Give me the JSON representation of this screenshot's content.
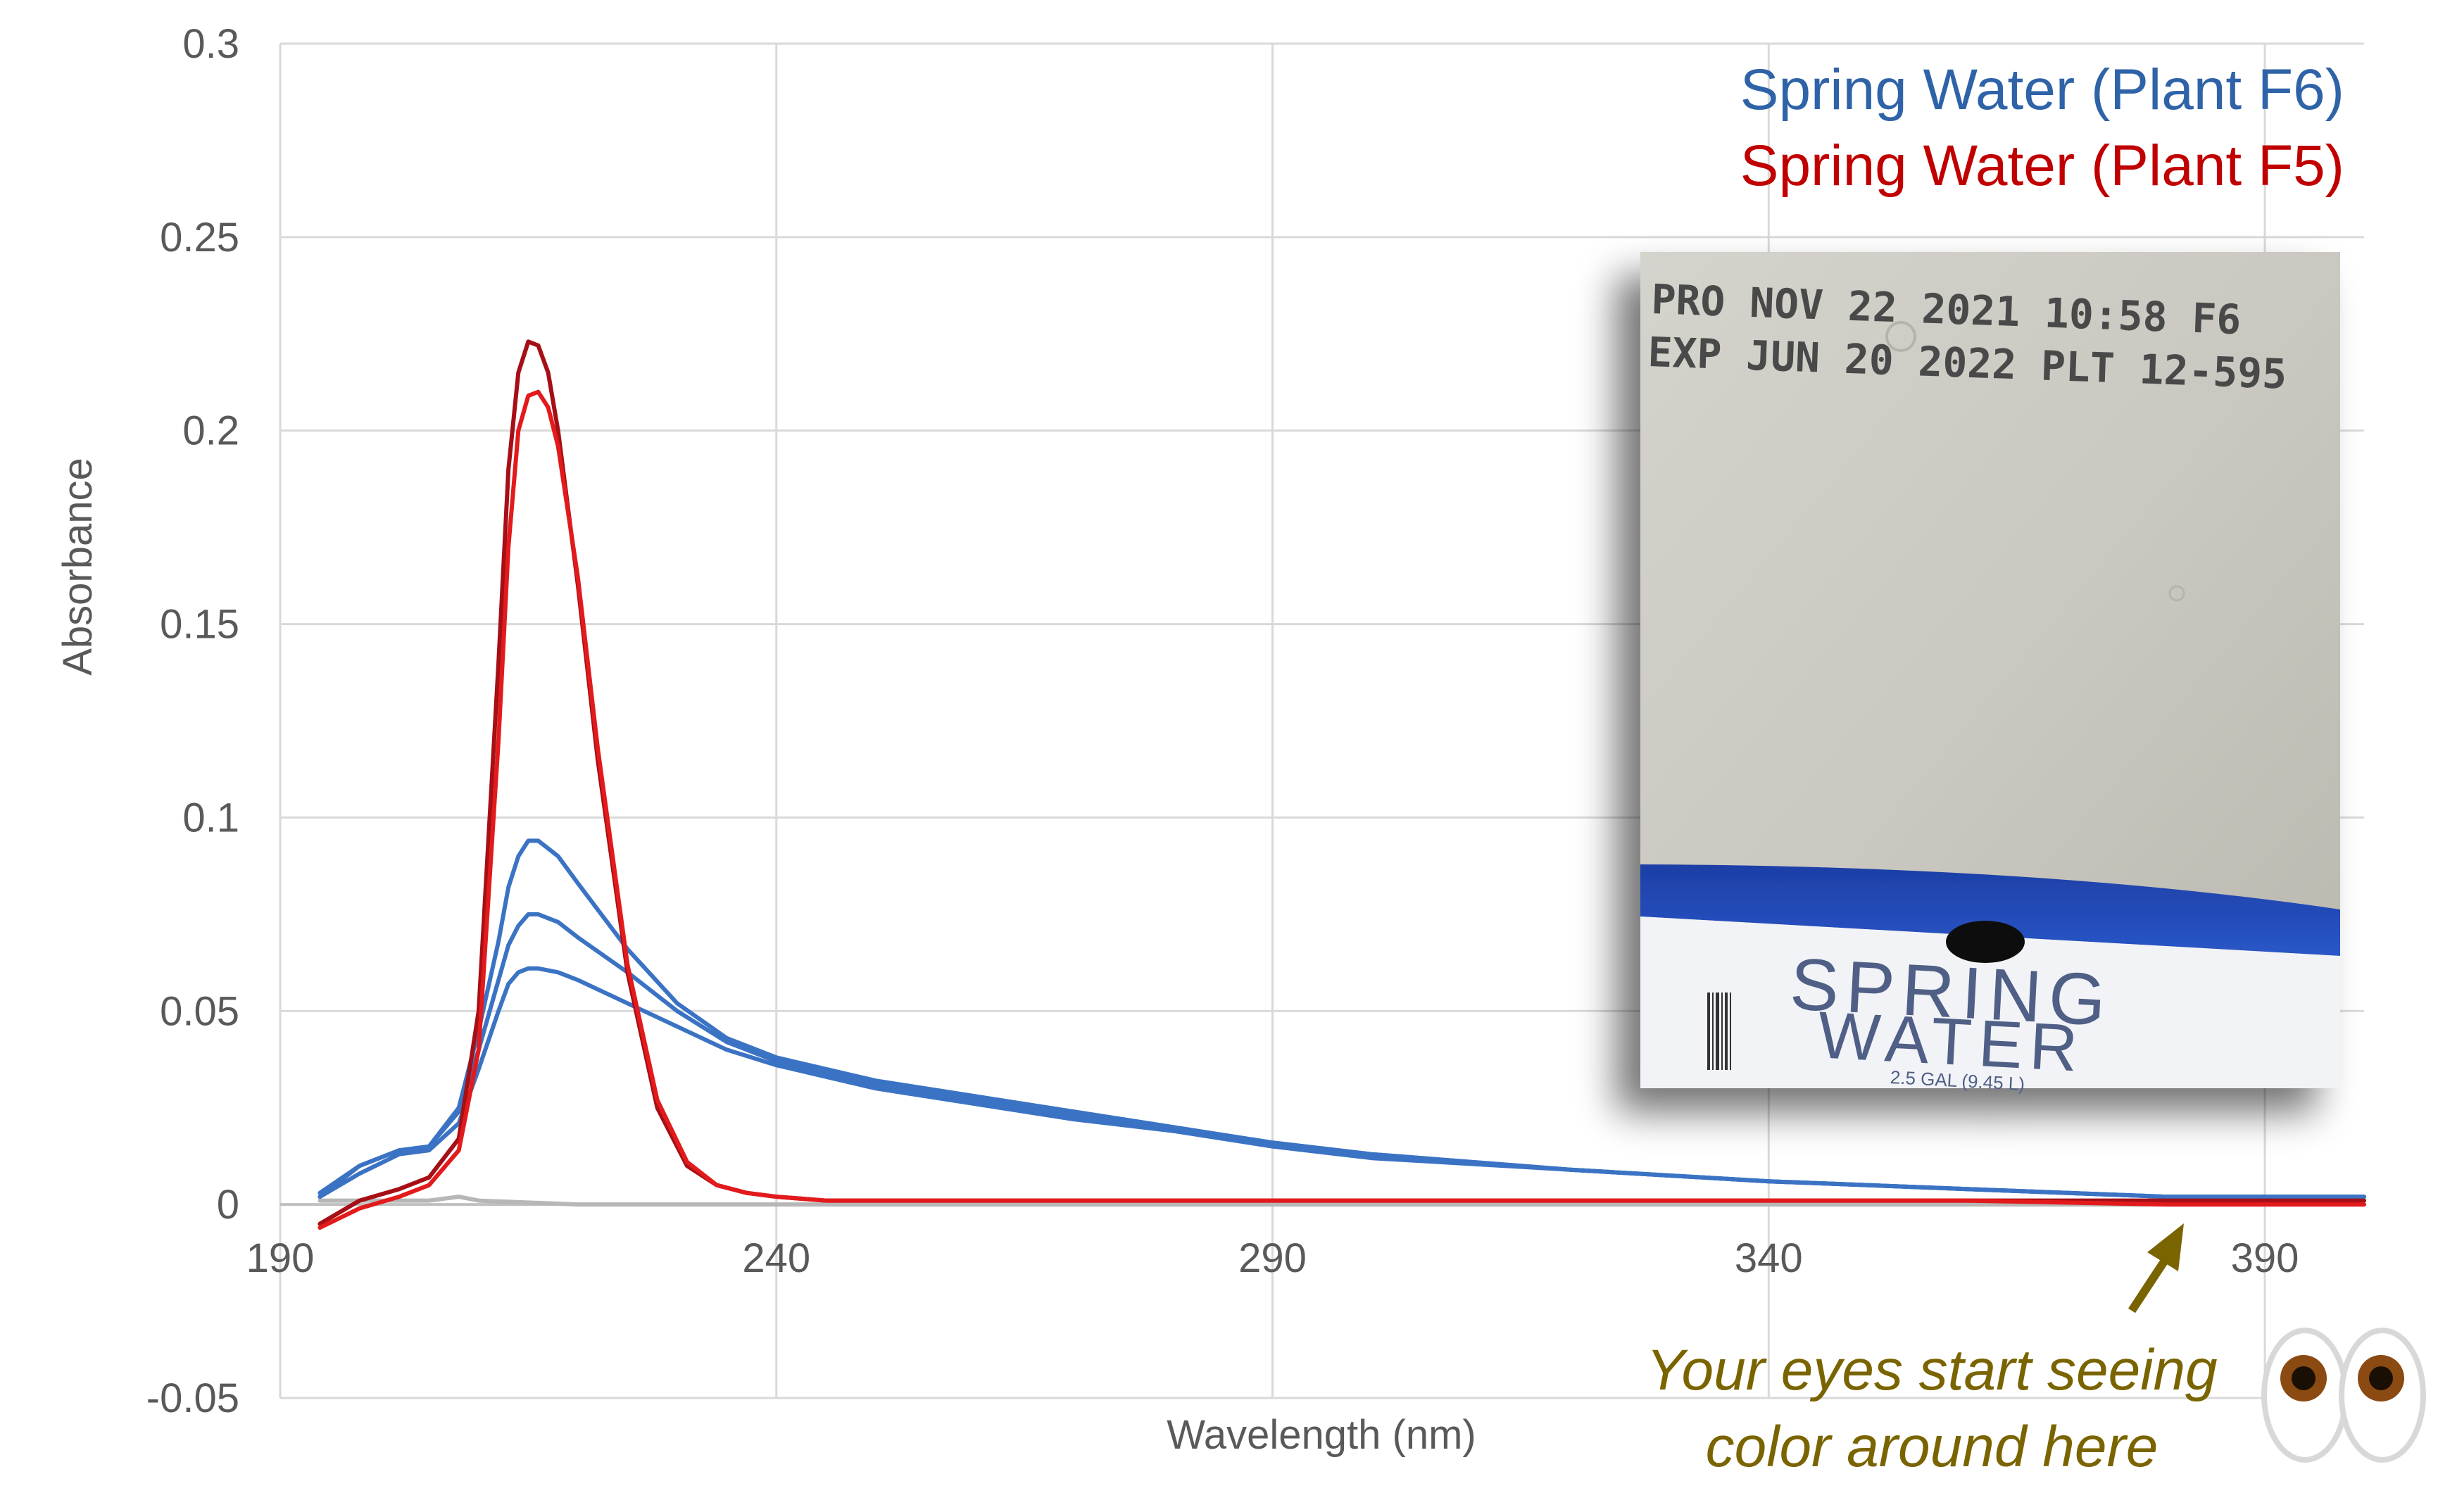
{
  "chart_data": {
    "type": "line",
    "title": "",
    "xlabel": "Wavelength (nm)",
    "ylabel": "Absorbance",
    "xlim": [
      190,
      400
    ],
    "ylim": [
      -0.05,
      0.3
    ],
    "x_ticks": [
      190,
      240,
      290,
      340,
      390
    ],
    "x_tick_labels": [
      "190",
      "240",
      "290",
      "340",
      "390"
    ],
    "y_ticks": [
      -0.05,
      0,
      0.05,
      0.1,
      0.15,
      0.2,
      0.25,
      0.3
    ],
    "y_tick_labels": [
      "-0.05",
      "0",
      "0.05",
      "0.1",
      "0.15",
      "0.2",
      "0.25",
      "0.3"
    ],
    "grid": true,
    "legend_position": "top-right",
    "legend": [
      {
        "label": "Spring Water (Plant F6)",
        "color": "#2f63a8"
      },
      {
        "label": "Spring Water (Plant F5)",
        "color": "#c00000"
      }
    ],
    "series": [
      {
        "color": "#3b73c4",
        "x": [
          194,
          198,
          202,
          205,
          208,
          210,
          212,
          213,
          214,
          215,
          216,
          218,
          220,
          225,
          230,
          235,
          240,
          250,
          260,
          270,
          280,
          290,
          300,
          320,
          340,
          360,
          380,
          400
        ],
        "y": [
          0.002,
          0.01,
          0.014,
          0.015,
          0.025,
          0.045,
          0.068,
          0.082,
          0.09,
          0.094,
          0.094,
          0.09,
          0.083,
          0.066,
          0.052,
          0.043,
          0.038,
          0.032,
          0.028,
          0.024,
          0.02,
          0.016,
          0.013,
          0.009,
          0.006,
          0.004,
          0.002,
          0.002
        ]
      },
      {
        "color": "#3b73c4",
        "x": [
          194,
          198,
          202,
          205,
          208,
          210,
          212,
          213,
          214,
          215,
          216,
          218,
          220,
          225,
          230,
          235,
          240,
          250,
          260,
          270,
          280,
          290,
          300,
          320,
          340,
          360,
          380,
          400
        ],
        "y": [
          0.003,
          0.01,
          0.014,
          0.015,
          0.024,
          0.04,
          0.058,
          0.067,
          0.072,
          0.075,
          0.075,
          0.073,
          0.069,
          0.06,
          0.05,
          0.042,
          0.037,
          0.031,
          0.027,
          0.023,
          0.019,
          0.016,
          0.013,
          0.009,
          0.006,
          0.004,
          0.002,
          0.002
        ]
      },
      {
        "color": "#3b73c4",
        "x": [
          194,
          198,
          202,
          205,
          208,
          210,
          212,
          213,
          214,
          215,
          216,
          218,
          220,
          225,
          230,
          235,
          240,
          250,
          260,
          270,
          280,
          290,
          300,
          320,
          340,
          360,
          380,
          400
        ],
        "y": [
          0.002,
          0.008,
          0.013,
          0.014,
          0.021,
          0.035,
          0.05,
          0.057,
          0.06,
          0.061,
          0.061,
          0.06,
          0.058,
          0.052,
          0.046,
          0.04,
          0.036,
          0.03,
          0.026,
          0.022,
          0.019,
          0.015,
          0.012,
          0.009,
          0.006,
          0.004,
          0.002,
          0.002
        ]
      },
      {
        "color": "#a50f15",
        "x": [
          194,
          198,
          202,
          205,
          208,
          210,
          212,
          213,
          214,
          215,
          216,
          217,
          218,
          220,
          222,
          225,
          228,
          231,
          234,
          237,
          240,
          245,
          250,
          260,
          280,
          300,
          320,
          340,
          360,
          380,
          400
        ],
        "y": [
          -0.005,
          0.001,
          0.004,
          0.007,
          0.017,
          0.05,
          0.14,
          0.19,
          0.215,
          0.223,
          0.222,
          0.215,
          0.2,
          0.16,
          0.115,
          0.06,
          0.025,
          0.01,
          0.005,
          0.003,
          0.002,
          0.001,
          0.001,
          0.001,
          0.001,
          0.001,
          0.001,
          0.001,
          0.001,
          0.001,
          0.001
        ]
      },
      {
        "color": "#e31a1c",
        "x": [
          194,
          198,
          202,
          205,
          208,
          210,
          212,
          213,
          214,
          215,
          216,
          217,
          218,
          220,
          222,
          225,
          228,
          231,
          234,
          237,
          240,
          245,
          250,
          260,
          280,
          300,
          320,
          340,
          360,
          380,
          400
        ],
        "y": [
          -0.006,
          -0.001,
          0.002,
          0.005,
          0.014,
          0.04,
          0.12,
          0.17,
          0.2,
          0.209,
          0.21,
          0.206,
          0.196,
          0.162,
          0.118,
          0.062,
          0.027,
          0.011,
          0.005,
          0.003,
          0.002,
          0.001,
          0.001,
          0.001,
          0.001,
          0.001,
          0.001,
          0.001,
          0.001,
          0.0,
          0.0
        ]
      },
      {
        "color": "#b7b7b7",
        "x": [
          194,
          200,
          205,
          208,
          210,
          220,
          240,
          260,
          300,
          340,
          380,
          400
        ],
        "y": [
          0.001,
          0.001,
          0.001,
          0.002,
          0.001,
          0.0,
          0.0,
          0.0,
          0.0,
          0.0,
          0.0,
          0.0
        ]
      }
    ],
    "annotation": {
      "lines": [
        "Your eyes start seeing",
        "color around here"
      ],
      "arrow_target": {
        "x": 382,
        "y": 0.0
      },
      "color": "#7a6400"
    }
  },
  "inset_photo": {
    "stamp_lines": [
      "PRO NOV 22 2021 10:58 F6",
      "EXP JUN 20 2022 PLT 12-595"
    ],
    "label_line1": "SPRING",
    "label_line2": "WATER",
    "label_size": "2.5 GAL (9.45 L)"
  },
  "icons": [
    "eyes-emoji-icon"
  ]
}
